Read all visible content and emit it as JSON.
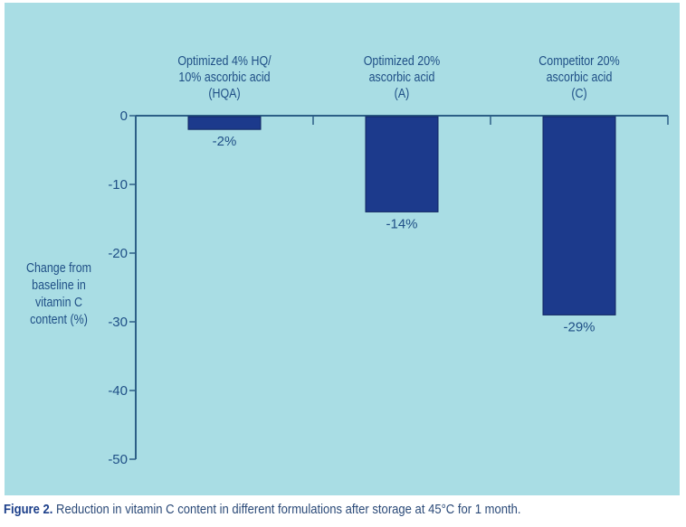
{
  "chart_data": {
    "type": "bar",
    "title": "",
    "categories": [
      "Optimized 4% HQ/ 10% ascorbic acid (HQA)",
      "Optimized 20% ascorbic acid (A)",
      "Competitor 20% ascorbic acid (C)"
    ],
    "category_label_lines": [
      [
        "Optimized 4% HQ/",
        "10% ascorbic acid",
        "(HQA)"
      ],
      [
        "Optimized 20%",
        "ascorbic acid",
        "(A)"
      ],
      [
        "Competitor 20%",
        "ascorbic acid",
        "(C)"
      ]
    ],
    "values": [
      -2,
      -14,
      -29
    ],
    "data_labels": [
      "-2%",
      "-14%",
      "-29%"
    ],
    "xlabel": "",
    "ylabel": "Change from baseline in vitamin C content (%)",
    "ylabel_lines": [
      "Change from",
      "baseline in",
      "vitamin C",
      "content (%)"
    ],
    "ylim": [
      -50,
      0
    ],
    "yticks": [
      0,
      -10,
      -20,
      -30,
      -40,
      -50
    ],
    "ytick_labels": [
      "0",
      "-10",
      "-20",
      "-30",
      "-40",
      "-50"
    ],
    "x_axis_position": "top",
    "grid": false,
    "legend": "none",
    "colors": {
      "bar": "#1c3a8c",
      "bar_edge": "#0f2460",
      "axis": "#2c5f86",
      "text": "#1f4f86",
      "background": "#a9dde4"
    }
  },
  "caption": {
    "figure_label": "Figure 2.",
    "text": " Reduction in vitamin C content in different formulations after storage at 45°C for 1 month."
  }
}
